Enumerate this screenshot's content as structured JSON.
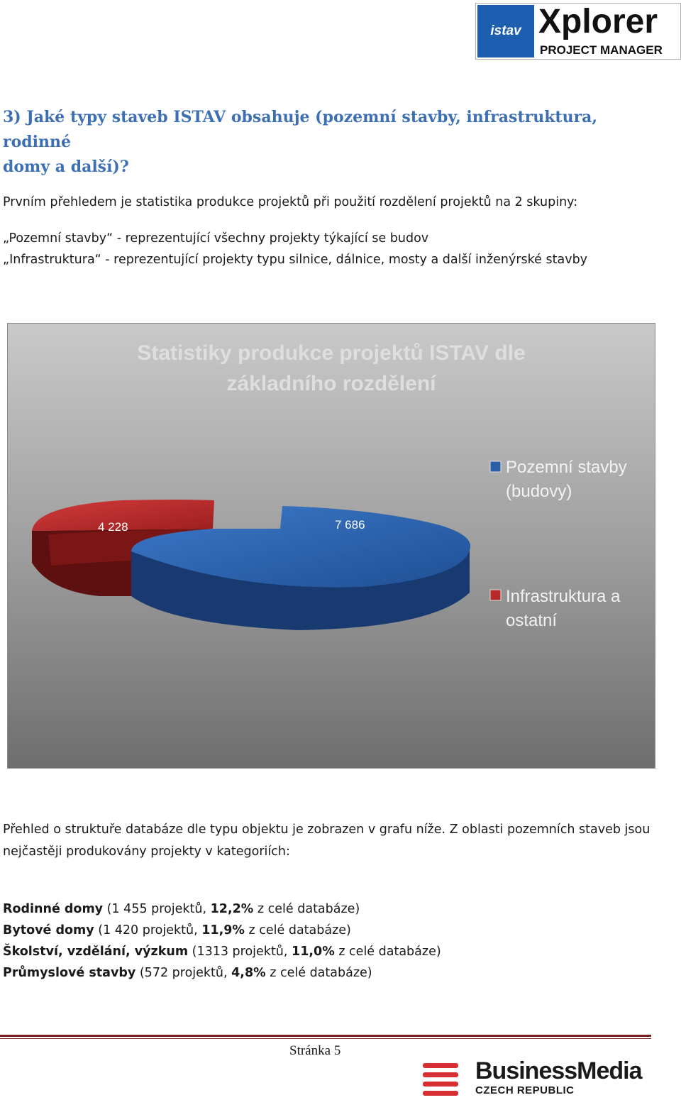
{
  "header": {
    "logo_left_text": "istav",
    "logo_title": "Xplorer",
    "logo_subtitle": "PROJECT MANAGER"
  },
  "heading": {
    "line1": "3) Jaké typy staveb ISTAV obsahuje (pozemní stavby, infrastruktura, rodinné",
    "line2": "domy a další)?"
  },
  "intro": {
    "p1": "Prvním přehledem je statistika produkce projektů při použití rozdělení projektů na 2 skupiny:",
    "p2": "„Pozemní stavby“ - reprezentující všechny projekty týkající se budov",
    "p3": "„Infrastruktura“ - reprezentující projekty typu silnice, dálnice, mosty a další inženýrské stavby"
  },
  "chart_data": {
    "type": "pie",
    "title_line1": "Statistiky produkce projektů ISTAV dle",
    "title_line2": "základního rozdělení",
    "series": [
      {
        "name": "Pozemní stavby (budovy)",
        "value": 7686,
        "label": "7 686",
        "color": "#2a5fa8"
      },
      {
        "name": "Infrastruktura a ostatní",
        "value": 4228,
        "label": "4 228",
        "color": "#b82a2a"
      }
    ],
    "legend": {
      "placement": "right",
      "item1_line1": "Pozemní stavby",
      "item1_line2": "(budovy)",
      "item2_line1": "Infrastruktura a",
      "item2_line2": "ostatní"
    }
  },
  "body": {
    "p4_line1": "Přehled o struktuře databáze dle typu objektu je zobrazen v grafu níže. Z oblasti pozemních staveb jsou",
    "p4_line2": "nejčastěji produkovány projekty v kategoriích:",
    "items": [
      {
        "name": "Rodinné domy",
        "mid": " (1 455 projektů, ",
        "pct": "12,2%",
        "tail": " z celé databáze)"
      },
      {
        "name": "Bytové domy",
        "mid": " (1 420 projektů, ",
        "pct": "11,9%",
        "tail": " z celé databáze)"
      },
      {
        "name": "Školství, vzdělání, výzkum",
        "mid": " (1313 projektů, ",
        "pct": "11,0%",
        "tail": " z celé databáze)"
      },
      {
        "name": "Průmyslové stavby",
        "mid": " (572 projektů, ",
        "pct": "4,8%",
        "tail": " z celé databáze)"
      }
    ]
  },
  "footer": {
    "page_label": "Stránka 5",
    "brand": "BusinessMedia",
    "brand_sub": "CZECH REPUBLIC"
  }
}
